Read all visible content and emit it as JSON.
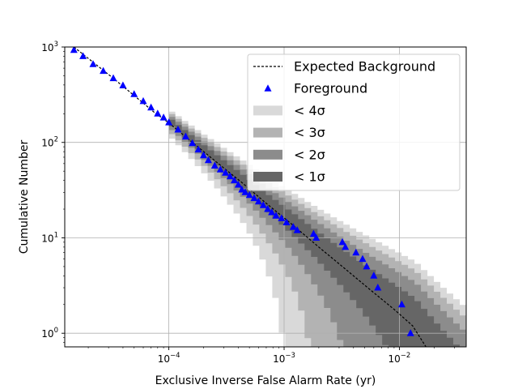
{
  "chart_data": {
    "type": "scatter",
    "xlabel": "Exclusive Inverse False Alarm Rate (yr)",
    "ylabel": "Cumulative Number",
    "xscale": "log",
    "yscale": "log",
    "xlim": [
      1.25e-05,
      0.038
    ],
    "ylim": [
      0.72,
      1000
    ],
    "grid": true,
    "legend_position": "top-right",
    "x_ticks": [
      {
        "base": "10",
        "exp": "−4",
        "value": 0.0001
      },
      {
        "base": "10",
        "exp": "−3",
        "value": 0.001
      },
      {
        "base": "10",
        "exp": "−2",
        "value": 0.01
      }
    ],
    "y_ticks": [
      {
        "base": "10",
        "exp": "0",
        "value": 1
      },
      {
        "base": "10",
        "exp": "1",
        "value": 10
      },
      {
        "base": "10",
        "exp": "2",
        "value": 100
      },
      {
        "base": "10",
        "exp": "3",
        "value": 1000
      }
    ],
    "colors": {
      "band_4sigma": "#d9d9d9",
      "band_3sigma": "#b3b3b3",
      "band_2sigma": "#8c8c8c",
      "band_1sigma": "#666666",
      "foreground": "#0000ff",
      "expected": "#000000",
      "grid": "#b0b0b0"
    },
    "legend": [
      {
        "label": "Expected Background",
        "kind": "line"
      },
      {
        "label": "Foreground",
        "kind": "marker"
      },
      {
        "label": "< 4σ",
        "kind": "patch",
        "color": "#d9d9d9"
      },
      {
        "label": "< 3σ",
        "kind": "patch",
        "color": "#b3b3b3"
      },
      {
        "label": "< 2σ",
        "kind": "patch",
        "color": "#8c8c8c"
      },
      {
        "label": "< 1σ",
        "kind": "patch",
        "color": "#666666"
      }
    ],
    "expected_background": {
      "name": "Expected Background",
      "x": [
        1.5e-05,
        3.3e-05,
        5.7e-05,
        7.5e-05,
        0.0001,
        0.00016,
        0.00026,
        0.00043,
        0.0007,
        0.0012,
        0.002,
        0.0032,
        0.0056,
        0.009,
        0.013,
        0.017
      ],
      "y": [
        1000,
        470,
        272,
        206,
        160,
        100,
        62,
        38,
        23,
        13.5,
        8.0,
        5.0,
        2.85,
        1.78,
        1.2,
        0.72
      ]
    },
    "background_bands": {
      "x_start": 0.0001,
      "x_end": 0.038,
      "sigma_multipliers": [
        1,
        2,
        3,
        4
      ]
    },
    "series": [
      {
        "name": "Foreground",
        "marker": "triangle",
        "x": [
          1.25e-05,
          1.5e-05,
          1.8e-05,
          2.2e-05,
          2.7e-05,
          3.3e-05,
          4e-05,
          5e-05,
          6e-05,
          7e-05,
          8e-05,
          9e-05,
          0.0001,
          0.00012,
          0.00014,
          0.00016,
          0.00018,
          0.0002,
          0.00022,
          0.00025,
          0.00028,
          0.00031,
          0.00034,
          0.00037,
          0.0004,
          0.00043,
          0.00046,
          0.0005,
          0.00055,
          0.0006,
          0.00066,
          0.00072,
          0.00078,
          0.00085,
          0.00095,
          0.00105,
          0.0012,
          0.0013,
          0.0018,
          0.0019,
          0.0032,
          0.0034,
          0.0042,
          0.0048,
          0.0052,
          0.006,
          0.0065,
          0.0105,
          0.0125
        ],
        "y": [
          1100,
          930,
          800,
          660,
          560,
          470,
          395,
          320,
          270,
          232,
          200,
          182,
          162,
          136,
          115,
          98,
          84,
          73,
          65,
          57,
          52,
          48,
          44,
          40,
          36,
          32,
          30,
          28,
          26,
          24,
          22,
          20,
          18.5,
          17,
          16,
          14.5,
          13,
          12,
          11,
          10,
          9,
          8,
          7,
          6,
          5,
          4,
          3,
          2,
          1
        ]
      }
    ]
  }
}
